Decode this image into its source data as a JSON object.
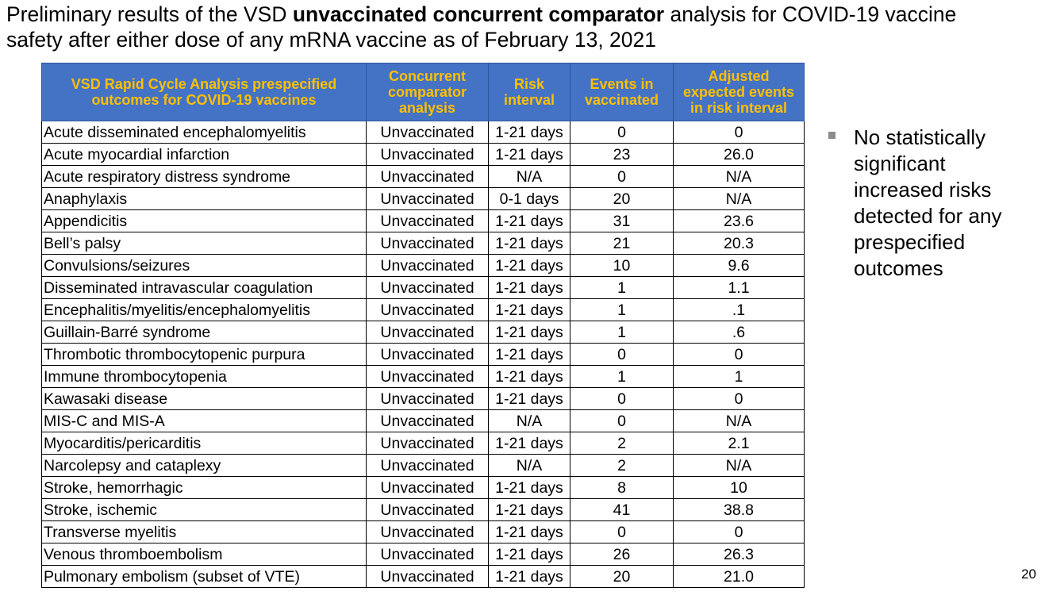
{
  "title": {
    "part1": "Preliminary results of the VSD ",
    "emphasis": "unvaccinated concurrent comparator",
    "part2": " analysis for COVID-19 vaccine safety after either dose of any mRNA vaccine as of February 13, 2021"
  },
  "table": {
    "headers": [
      "VSD Rapid Cycle Analysis prespecified outcomes for COVID-19 vaccines",
      "Concurrent comparator analysis",
      "Risk interval",
      "Events in vaccinated",
      "Adjusted expected events in risk interval"
    ],
    "rows": [
      [
        "Acute disseminated encephalomyelitis",
        "Unvaccinated",
        "1-21 days",
        "0",
        "0"
      ],
      [
        "Acute myocardial infarction",
        "Unvaccinated",
        "1-21 days",
        "23",
        "26.0"
      ],
      [
        "Acute respiratory distress syndrome",
        "Unvaccinated",
        "N/A",
        "0",
        "N/A"
      ],
      [
        "Anaphylaxis",
        "Unvaccinated",
        "0-1 days",
        "20",
        "N/A"
      ],
      [
        "Appendicitis",
        "Unvaccinated",
        "1-21 days",
        "31",
        "23.6"
      ],
      [
        "Bell’s palsy",
        "Unvaccinated",
        "1-21 days",
        "21",
        "20.3"
      ],
      [
        "Convulsions/seizures",
        "Unvaccinated",
        "1-21 days",
        "10",
        "9.6"
      ],
      [
        "Disseminated intravascular coagulation",
        "Unvaccinated",
        "1-21 days",
        "1",
        "1.1"
      ],
      [
        "Encephalitis/myelitis/encephalomyelitis",
        "Unvaccinated",
        "1-21 days",
        "1",
        ".1"
      ],
      [
        "Guillain-Barré syndrome",
        "Unvaccinated",
        "1-21 days",
        "1",
        ".6"
      ],
      [
        "Thrombotic thrombocytopenic purpura",
        "Unvaccinated",
        "1-21 days",
        "0",
        "0"
      ],
      [
        "Immune thrombocytopenia",
        "Unvaccinated",
        "1-21 days",
        "1",
        "1"
      ],
      [
        "Kawasaki disease",
        "Unvaccinated",
        "1-21 days",
        "0",
        "0"
      ],
      [
        "MIS-C and MIS-A",
        "Unvaccinated",
        "N/A",
        "0",
        "N/A"
      ],
      [
        "Myocarditis/pericarditis",
        "Unvaccinated",
        "1-21 days",
        "2",
        "2.1"
      ],
      [
        "Narcolepsy and cataplexy",
        "Unvaccinated",
        "N/A",
        "2",
        "N/A"
      ],
      [
        "Stroke, hemorrhagic",
        "Unvaccinated",
        "1-21 days",
        "8",
        "10"
      ],
      [
        "Stroke, ischemic",
        "Unvaccinated",
        "1-21 days",
        "41",
        "38.8"
      ],
      [
        "Transverse myelitis",
        "Unvaccinated",
        "1-21 days",
        "0",
        "0"
      ],
      [
        "Venous thromboembolism",
        "Unvaccinated",
        "1-21 days",
        "26",
        "26.3"
      ],
      [
        "Pulmonary embolism (subset of VTE)",
        "Unvaccinated",
        "1-21 days",
        "20",
        "21.0"
      ]
    ]
  },
  "bullet": {
    "text": "No statistically significant increased risks detected for any prespecified outcomes"
  },
  "page_number": "20",
  "colors": {
    "header_bg": "#4472c4",
    "header_text": "#ffc000",
    "bullet_marker": "#8c8c8c"
  }
}
